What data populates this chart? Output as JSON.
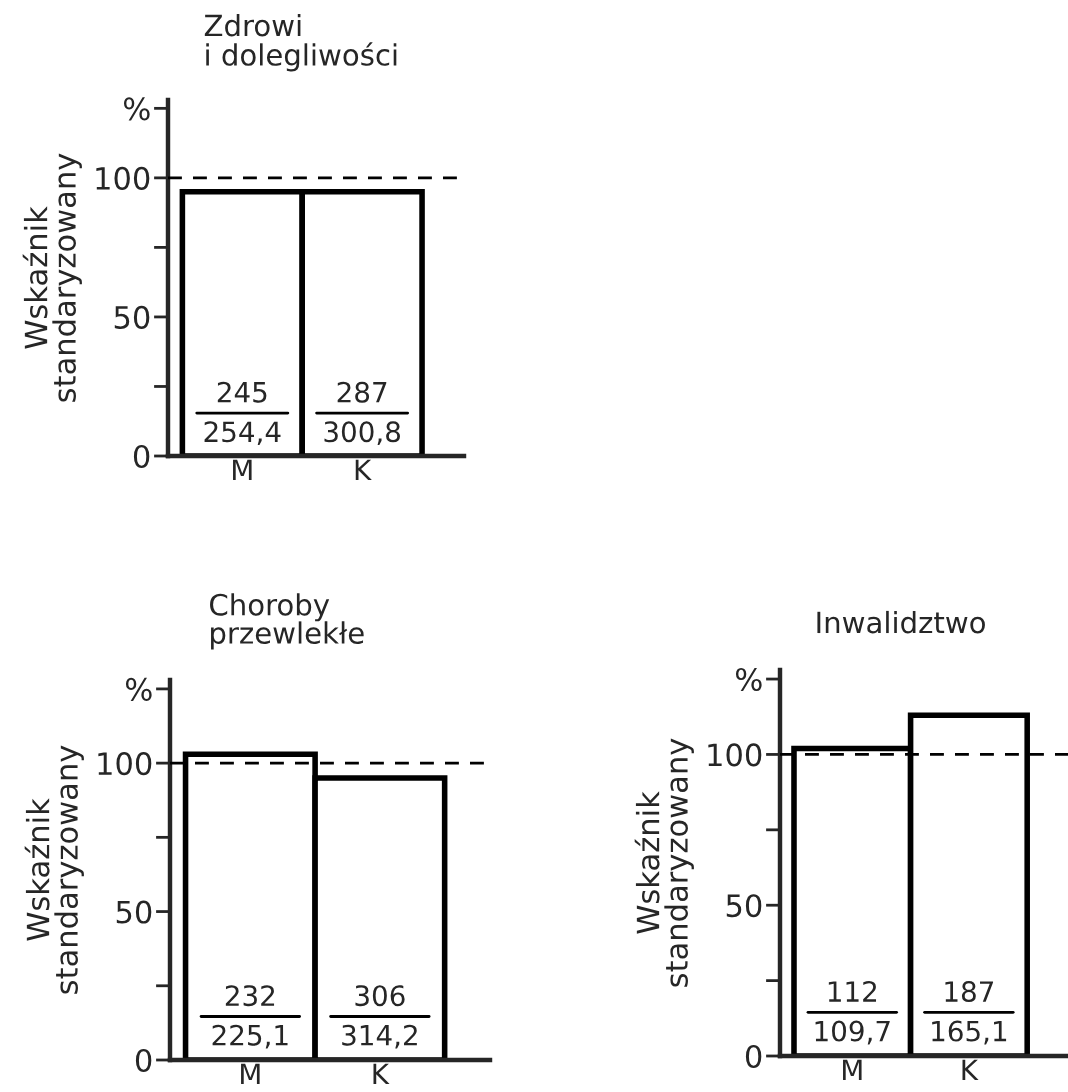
{
  "chart_data": [
    {
      "type": "bar",
      "title": "Zdrowi\ni dolegliwości",
      "ylabel": "Wskaźnik\nstandaryzowany",
      "categories": [
        "M",
        "K"
      ],
      "values": [
        95,
        95
      ],
      "color": "#ffffff",
      "ylim": [
        0,
        128
      ],
      "yticks": [
        0,
        {
          "value": 25,
          "label": null
        },
        50,
        {
          "value": 75,
          "label": null
        },
        100,
        {
          "value": 125,
          "label": "%"
        }
      ],
      "ref_lines": [
        {
          "axis": "y",
          "value": 100,
          "line_style": "dashed"
        }
      ],
      "annotations": [
        {
          "text": "245\n254,4",
          "x": "M",
          "y": 0
        },
        {
          "text": "287\n300,8",
          "x": "K",
          "y": 0
        }
      ],
      "grid": false,
      "legend": false
    },
    {
      "type": "bar",
      "title": "Choroby\nprzewlekłe",
      "ylabel": "Wskaźnik\nstandaryzowany",
      "categories": [
        "M",
        "K"
      ],
      "values": [
        103,
        95
      ],
      "color": "#ffffff",
      "ylim": [
        0,
        128
      ],
      "yticks": [
        0,
        {
          "value": 25,
          "label": null
        },
        50,
        {
          "value": 75,
          "label": null
        },
        100,
        {
          "value": 125,
          "label": "%"
        }
      ],
      "ref_lines": [
        {
          "axis": "y",
          "value": 100,
          "line_style": "dashed"
        }
      ],
      "annotations": [
        {
          "text": "232\n225,1",
          "x": "M",
          "y": 0
        },
        {
          "text": "306\n314,2",
          "x": "K",
          "y": 0
        }
      ],
      "grid": false,
      "legend": false
    },
    {
      "type": "bar",
      "title": "Inwalidztwo",
      "ylabel": "Wskaźnik\nstandaryzowany",
      "categories": [
        "M",
        "K"
      ],
      "values": [
        102,
        113
      ],
      "color": "#ffffff",
      "ylim": [
        0,
        128
      ],
      "yticks": [
        0,
        {
          "value": 25,
          "label": null
        },
        50,
        {
          "value": 75,
          "label": null
        },
        100,
        {
          "value": 125,
          "label": "%"
        }
      ],
      "ref_lines": [
        {
          "axis": "y",
          "value": 100,
          "line_style": "dashed"
        }
      ],
      "annotations": [
        {
          "text": "112\n109,7",
          "x": "M",
          "y": 0
        },
        {
          "text": "187\n165,1",
          "x": "K",
          "y": 0
        }
      ],
      "grid": false,
      "legend": false
    }
  ]
}
